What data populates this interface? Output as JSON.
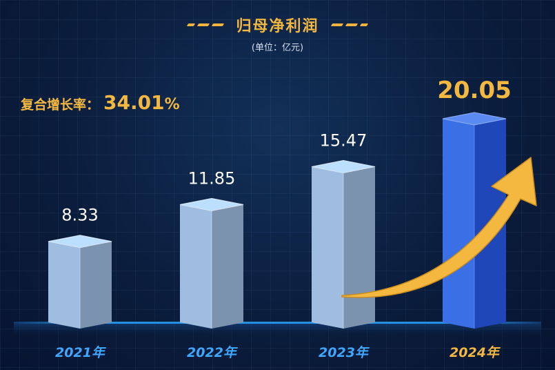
{
  "header": {
    "title": "归母净利润",
    "unit": "(单位：亿元)"
  },
  "cagr": {
    "label": "复合增长率：",
    "value": "34.01",
    "suffix": "%"
  },
  "colors": {
    "bar_normal": "#9fbde0",
    "bar_highlight": "#2f62d8",
    "accent": "#f4b840",
    "label_blue": "#3fa7ff",
    "value_white": "#ffffff"
  },
  "chart_data": {
    "type": "bar",
    "title": "归母净利润",
    "subtitle": "(单位：亿元)",
    "categories": [
      "2021年",
      "2022年",
      "2023年",
      "2024年"
    ],
    "values": [
      8.33,
      11.85,
      15.47,
      20.05
    ],
    "value_labels": [
      "8.33",
      "11.85",
      "15.47",
      "20.05"
    ],
    "highlight_index": 3,
    "annotation": "复合增长率：34.01%",
    "ylim": [
      0,
      20.05
    ],
    "grid": false,
    "legend": "none"
  }
}
